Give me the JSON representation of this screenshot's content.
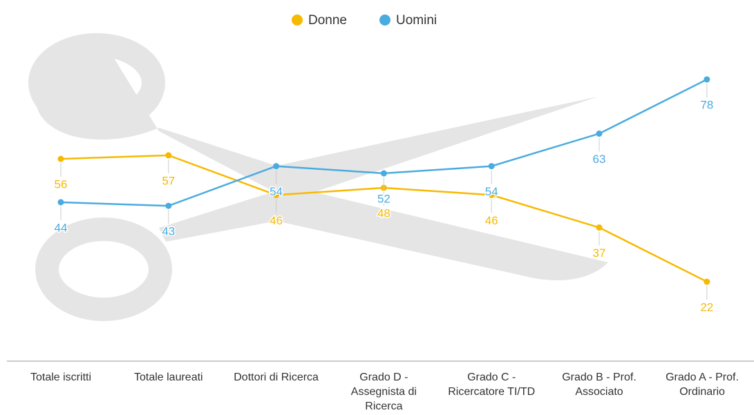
{
  "chart_data": {
    "type": "line",
    "categories": [
      "Totale iscritti",
      "Totale laureati",
      "Dottori di Ricerca",
      "Grado D - Assegnista di Ricerca",
      "Grado C - Ricercatore TI/TD",
      "Grado B - Prof. Associato",
      "Grado A - Prof. Ordinario"
    ],
    "series": [
      {
        "name": "Donne",
        "color": "#f7b900",
        "values": [
          56,
          57,
          46,
          48,
          46,
          37,
          22
        ]
      },
      {
        "name": "Uomini",
        "color": "#4aabdf",
        "values": [
          44,
          43,
          54,
          52,
          54,
          63,
          78
        ]
      }
    ],
    "ylim": [
      0,
      100
    ]
  }
}
